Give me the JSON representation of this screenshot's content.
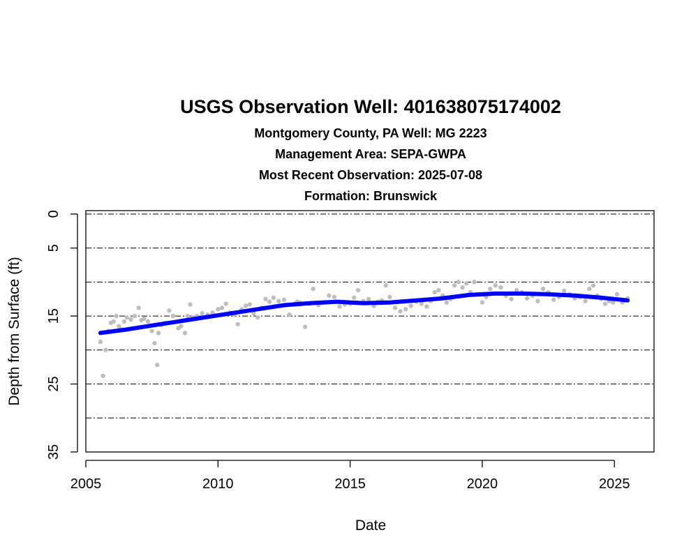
{
  "chart_data": {
    "type": "scatter",
    "title": "USGS Observation Well:  401638075174002",
    "subtitles": [
      "Montgomery County, PA   Well: MG 2223",
      "Management Area: SEPA-GWPA",
      "Most Recent Observation: 2025-07-08",
      "Formation: Brunswick"
    ],
    "xlabel": "Date",
    "ylabel": "Depth from Surface (ft)",
    "xlim": [
      2005,
      2026.5
    ],
    "ylim": [
      35,
      -0.5
    ],
    "y_reversed": true,
    "x_ticks": [
      2005,
      2010,
      2015,
      2020,
      2025
    ],
    "y_ticks": [
      0,
      5,
      15,
      25,
      35
    ],
    "gridlines_y": [
      0,
      5,
      10,
      15,
      20,
      25,
      30
    ],
    "grid": "horizontal dash-dot",
    "colors": {
      "points": "#bebebe",
      "trend": "#0000ff",
      "grid": "#000000"
    },
    "series": [
      {
        "kind": "points",
        "x": [
          2005.55,
          2005.65,
          2005.75,
          2005.85,
          2005.95,
          2006.05,
          2006.15,
          2006.25,
          2006.35,
          2006.45,
          2006.55,
          2006.7,
          2006.85,
          2007.0,
          2007.1,
          2007.2,
          2007.35,
          2007.5,
          2007.6,
          2007.7,
          2007.75,
          2007.85,
          2008.0,
          2008.15,
          2008.3,
          2008.5,
          2008.6,
          2008.75,
          2008.85,
          2008.95,
          2009.05,
          2009.2,
          2009.4,
          2009.6,
          2009.8,
          2010.0,
          2010.15,
          2010.3,
          2010.45,
          2010.6,
          2010.75,
          2010.9,
          2011.05,
          2011.2,
          2011.35,
          2011.5,
          2011.65,
          2011.8,
          2011.95,
          2012.1,
          2012.3,
          2012.5,
          2012.7,
          2012.9,
          2013.0,
          2013.1,
          2013.3,
          2013.45,
          2013.6,
          2013.8,
          2014.0,
          2014.2,
          2014.4,
          2014.6,
          2014.8,
          2015.0,
          2015.15,
          2015.3,
          2015.5,
          2015.7,
          2015.9,
          2016.05,
          2016.2,
          2016.35,
          2016.5,
          2016.7,
          2016.9,
          2017.1,
          2017.3,
          2017.5,
          2017.7,
          2017.9,
          2018.05,
          2018.2,
          2018.35,
          2018.5,
          2018.65,
          2018.8,
          2018.95,
          2019.1,
          2019.25,
          2019.4,
          2019.55,
          2019.7,
          2019.85,
          2020.0,
          2020.15,
          2020.3,
          2020.5,
          2020.7,
          2020.9,
          2021.1,
          2021.3,
          2021.5,
          2021.7,
          2021.9,
          2022.1,
          2022.3,
          2022.5,
          2022.7,
          2022.9,
          2023.1,
          2023.3,
          2023.5,
          2023.7,
          2023.9,
          2024.05,
          2024.2,
          2024.35,
          2024.5,
          2024.65,
          2024.8,
          2024.95,
          2025.1,
          2025.3,
          2025.5
        ],
        "y": [
          18.8,
          23.8,
          20.0,
          17.2,
          16.0,
          15.8,
          15.0,
          16.5,
          17.0,
          15.8,
          15.2,
          15.5,
          15.0,
          13.8,
          15.6,
          15.4,
          15.8,
          17.2,
          19.0,
          22.2,
          17.5,
          16.3,
          16.0,
          14.2,
          15.0,
          16.8,
          16.5,
          17.5,
          15.0,
          13.3,
          15.2,
          15.0,
          14.6,
          14.8,
          14.5,
          14.0,
          13.8,
          13.2,
          14.5,
          14.8,
          16.2,
          14.0,
          13.5,
          13.3,
          14.6,
          15.2,
          13.8,
          12.5,
          12.9,
          12.3,
          12.8,
          12.6,
          14.8,
          13.2,
          12.9,
          13.0,
          16.6,
          13.2,
          11.0,
          13.4,
          13.0,
          12.0,
          12.2,
          13.6,
          13.3,
          13.2,
          12.3,
          11.2,
          12.8,
          12.5,
          13.5,
          12.9,
          12.7,
          10.5,
          12.2,
          13.8,
          14.3,
          14.0,
          13.5,
          12.9,
          13.2,
          13.6,
          12.8,
          11.5,
          11.2,
          12.0,
          13.0,
          12.5,
          10.5,
          10.0,
          10.8,
          10.2,
          11.5,
          10.0,
          11.8,
          13.0,
          12.2,
          11.0,
          10.5,
          10.8,
          12.0,
          12.5,
          11.2,
          11.5,
          12.4,
          12.0,
          12.8,
          11.0,
          11.5,
          12.6,
          12.2,
          11.3,
          11.8,
          12.4,
          12.2,
          12.8,
          11.0,
          10.5,
          12.0,
          12.5,
          13.2,
          12.8,
          13.0,
          11.8,
          13.0,
          12.4
        ]
      },
      {
        "kind": "trend",
        "x": [
          2005.55,
          2006.5,
          2007.5,
          2008.5,
          2009.5,
          2010.5,
          2011.5,
          2012.5,
          2013.5,
          2014.5,
          2015.5,
          2016.5,
          2017.5,
          2018.5,
          2019.5,
          2020.5,
          2021.5,
          2022.5,
          2023.5,
          2024.5,
          2025.5
        ],
        "y": [
          17.5,
          17.0,
          16.4,
          15.8,
          15.2,
          14.6,
          14.0,
          13.4,
          13.1,
          12.9,
          13.1,
          13.0,
          12.7,
          12.4,
          11.9,
          11.7,
          11.7,
          11.8,
          12.0,
          12.3,
          12.7
        ]
      }
    ]
  }
}
